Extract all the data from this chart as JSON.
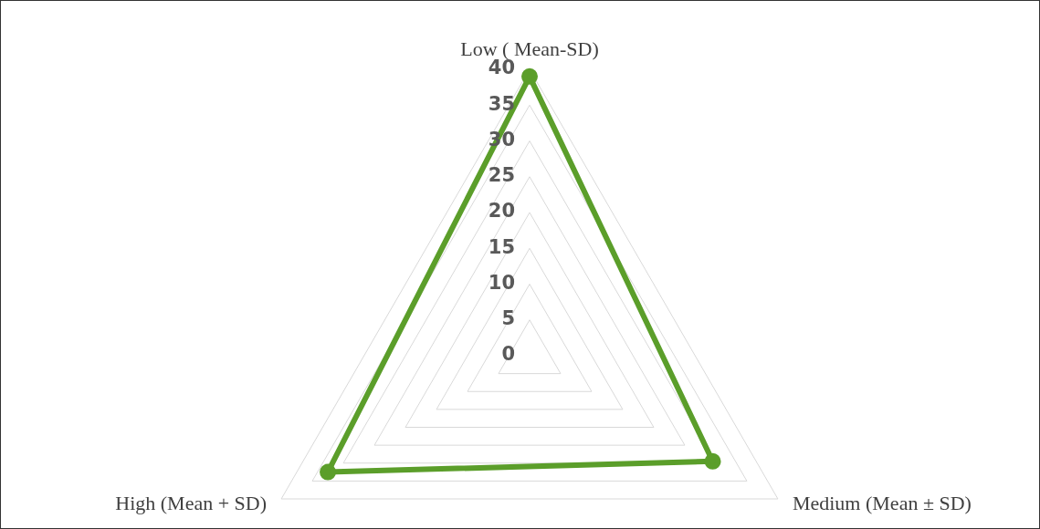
{
  "chart_data": {
    "type": "radar",
    "categories": [
      "Low ( Mean-SD)",
      "Medium (Mean ± SD)",
      "High (Mean + SD)"
    ],
    "series": [
      {
        "type": "radar",
        "color": "#5b9e2a",
        "values": [
          39,
          29.5,
          32.5
        ]
      }
    ],
    "ylim": [
      0,
      40
    ],
    "yticks": [
      0,
      5,
      10,
      15,
      20,
      25,
      30,
      35,
      40
    ],
    "grid": true,
    "legend": false,
    "marker": "circle",
    "line_style": "solid"
  }
}
